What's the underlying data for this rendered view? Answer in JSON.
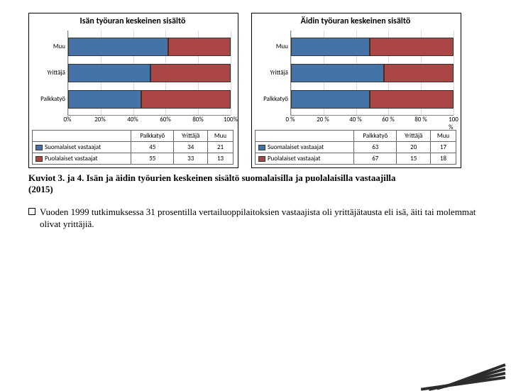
{
  "charts": [
    {
      "title": "Isän työuran keskeinen sisältö",
      "categories": [
        "Muu",
        "Yrittäjä",
        "Palkkatyö"
      ],
      "columns": [
        "Palkkatyö",
        "Yrittäjä",
        "Muu"
      ],
      "series": [
        {
          "name": "Suomalaiset vastaajat",
          "color": "#4573a7",
          "values": [
            45,
            34,
            21
          ]
        },
        {
          "name": "Puolalaiset vastaajat",
          "color": "#aa4644",
          "values": [
            55,
            33,
            13
          ]
        }
      ],
      "xticks": [
        "0%",
        "20%",
        "40%",
        "60%",
        "80%",
        "100%"
      ],
      "xlim": 100
    },
    {
      "title": "Äidin työuran keskeinen sisältö",
      "categories": [
        "Muu",
        "Yrittäjä",
        "Palkkatyö"
      ],
      "columns": [
        "Palkkatyö",
        "Yrittäjä",
        "Muu"
      ],
      "series": [
        {
          "name": "Suomalaiset vastaajat",
          "color": "#4573a7",
          "values": [
            63,
            20,
            17
          ]
        },
        {
          "name": "Puolalaiset vastaajat",
          "color": "#aa4644",
          "values": [
            67,
            15,
            18
          ]
        }
      ],
      "xticks": [
        "0 %",
        "20 %",
        "40 %",
        "60 %",
        "80 %",
        "100 %"
      ],
      "xlim": 100
    }
  ],
  "caption_line1": "Kuviot 3. ja 4. Isän ja äidin työurien keskeinen sisältö suomalaisilla ja puolalaisilla vastaajilla",
  "caption_line2": "(2015)",
  "bullet_text": "Vuoden 1999 tutkimuksessa 31 prosentilla vertailuoppilaitoksien vastaajista oli yrittäjätausta eli isä, äiti tai molemmat olivat yrittäjiä."
}
